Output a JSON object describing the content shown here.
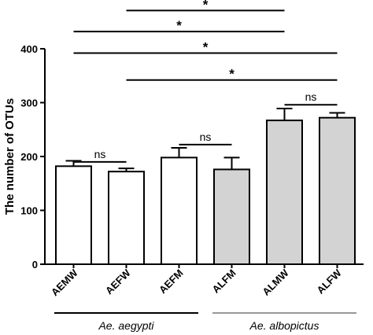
{
  "chart_data": {
    "type": "bar",
    "title": "",
    "xlabel": "",
    "ylabel": "The number of OTUs",
    "ylim": [
      0,
      400
    ],
    "yticks": [
      0,
      100,
      200,
      300,
      400
    ],
    "grid": false,
    "categories": [
      "AEMW",
      "AEFW",
      "AEFM",
      "ALFM",
      "ALMW",
      "ALFW"
    ],
    "values": [
      182,
      172,
      198,
      176,
      267,
      272
    ],
    "errors": [
      10,
      6,
      18,
      22,
      22,
      9
    ],
    "colors": [
      "#ffffff",
      "#ffffff",
      "#ffffff",
      "#d3d3d3",
      "#d3d3d3",
      "#d3d3d3"
    ],
    "groups": [
      {
        "label": "Ae. aegypti",
        "from": 0,
        "to": 2,
        "color": "#000000"
      },
      {
        "label": "Ae. albopictus",
        "from": 3,
        "to": 5,
        "color": "#999999"
      }
    ],
    "comparisons": [
      {
        "a": 0,
        "b": 1,
        "label": "ns",
        "y": 190
      },
      {
        "a": 2,
        "b": 3,
        "label": "ns",
        "y": 222
      },
      {
        "a": 4,
        "b": 5,
        "label": "ns",
        "y": 296
      },
      {
        "a": 1,
        "b": 5,
        "label": "*",
        "y": 342
      },
      {
        "a": 0,
        "b": 5,
        "label": "*",
        "y": 392
      },
      {
        "a": 0,
        "b": 4,
        "label": "*",
        "y": 432
      },
      {
        "a": 1,
        "b": 4,
        "label": "*",
        "y": 471
      }
    ]
  }
}
